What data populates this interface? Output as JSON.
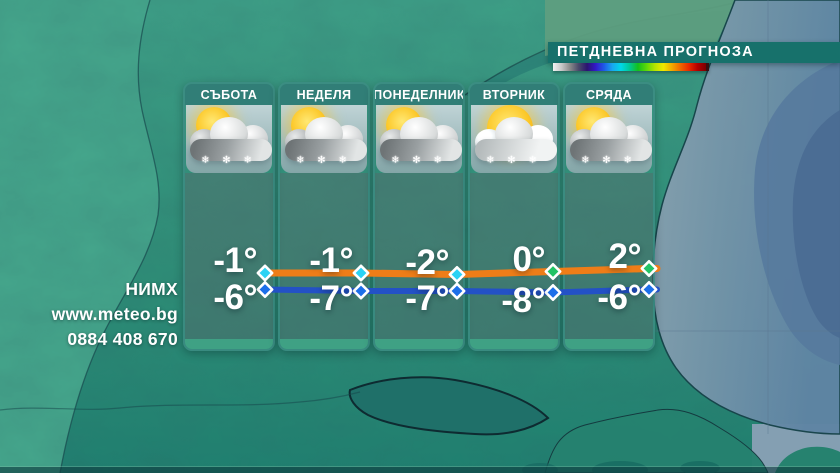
{
  "title_banner": {
    "label": "ПЕТДНЕВНА ПРОГНОЗА"
  },
  "temp_scale": {
    "colors": [
      "#f2f2f2",
      "#c8c8c8",
      "#8a8a8a",
      "#4a4a6a",
      "#2c1470",
      "#3318c8",
      "#1f5ae8",
      "#18a8f0",
      "#00d8e8",
      "#00c896",
      "#14c01c",
      "#5cd80a",
      "#b4e400",
      "#f0e800",
      "#f0a800",
      "#ee6600",
      "#e82800",
      "#b40000",
      "#7a0000"
    ]
  },
  "contact": {
    "org": "НИМХ",
    "website": "www.meteo.bg",
    "phone": "0884 408 670"
  },
  "icon_glyphs": {
    "snow": "❄ ✻ ❄"
  },
  "days": [
    {
      "label": "СЪБОТА",
      "icon": "sun-clouds-snow"
    },
    {
      "label": "НЕДЕЛЯ",
      "icon": "sun-clouds-snow"
    },
    {
      "label": "ПОНЕДЕЛНИК",
      "icon": "sun-clouds-snow"
    },
    {
      "label": "ВТОРНИК",
      "icon": "sun-bright-clouds-snow"
    },
    {
      "label": "СРЯДА",
      "icon": "sun-clouds-snow"
    }
  ],
  "chart_data": {
    "type": "line",
    "title": "ПЕТДНЕВНА ПРОГНОЗА",
    "categories": [
      "СЪБОТА",
      "НЕДЕЛЯ",
      "ПОНЕДЕЛНИК",
      "ВТОРНИК",
      "СРЯДА"
    ],
    "unit": "°C",
    "series": [
      {
        "name": "max_temperature",
        "values": [
          -1,
          -1,
          -2,
          0,
          2
        ],
        "line_color": "#EE7D18",
        "marker_shape": "diamond",
        "marker_colors": [
          "#2BD2F4",
          "#2BD2F4",
          "#2BD2F4",
          "#23C365",
          "#23C365"
        ]
      },
      {
        "name": "min_temperature",
        "values": [
          -6,
          -7,
          -7,
          -8,
          -6
        ],
        "line_color": "#2351C6",
        "marker_shape": "diamond",
        "marker_colors": [
          "#1C6FE9",
          "#1C6FE9",
          "#1C6FE9",
          "#1C6FE9",
          "#1C6FE9"
        ]
      }
    ],
    "value_labels": {
      "max": [
        "-1°",
        "-1°",
        "-2°",
        "0°",
        "2°"
      ],
      "min": [
        "-6°",
        "-7°",
        "-7°",
        "-8°",
        "-6°"
      ]
    },
    "legend_position": "none",
    "grid": false
  }
}
